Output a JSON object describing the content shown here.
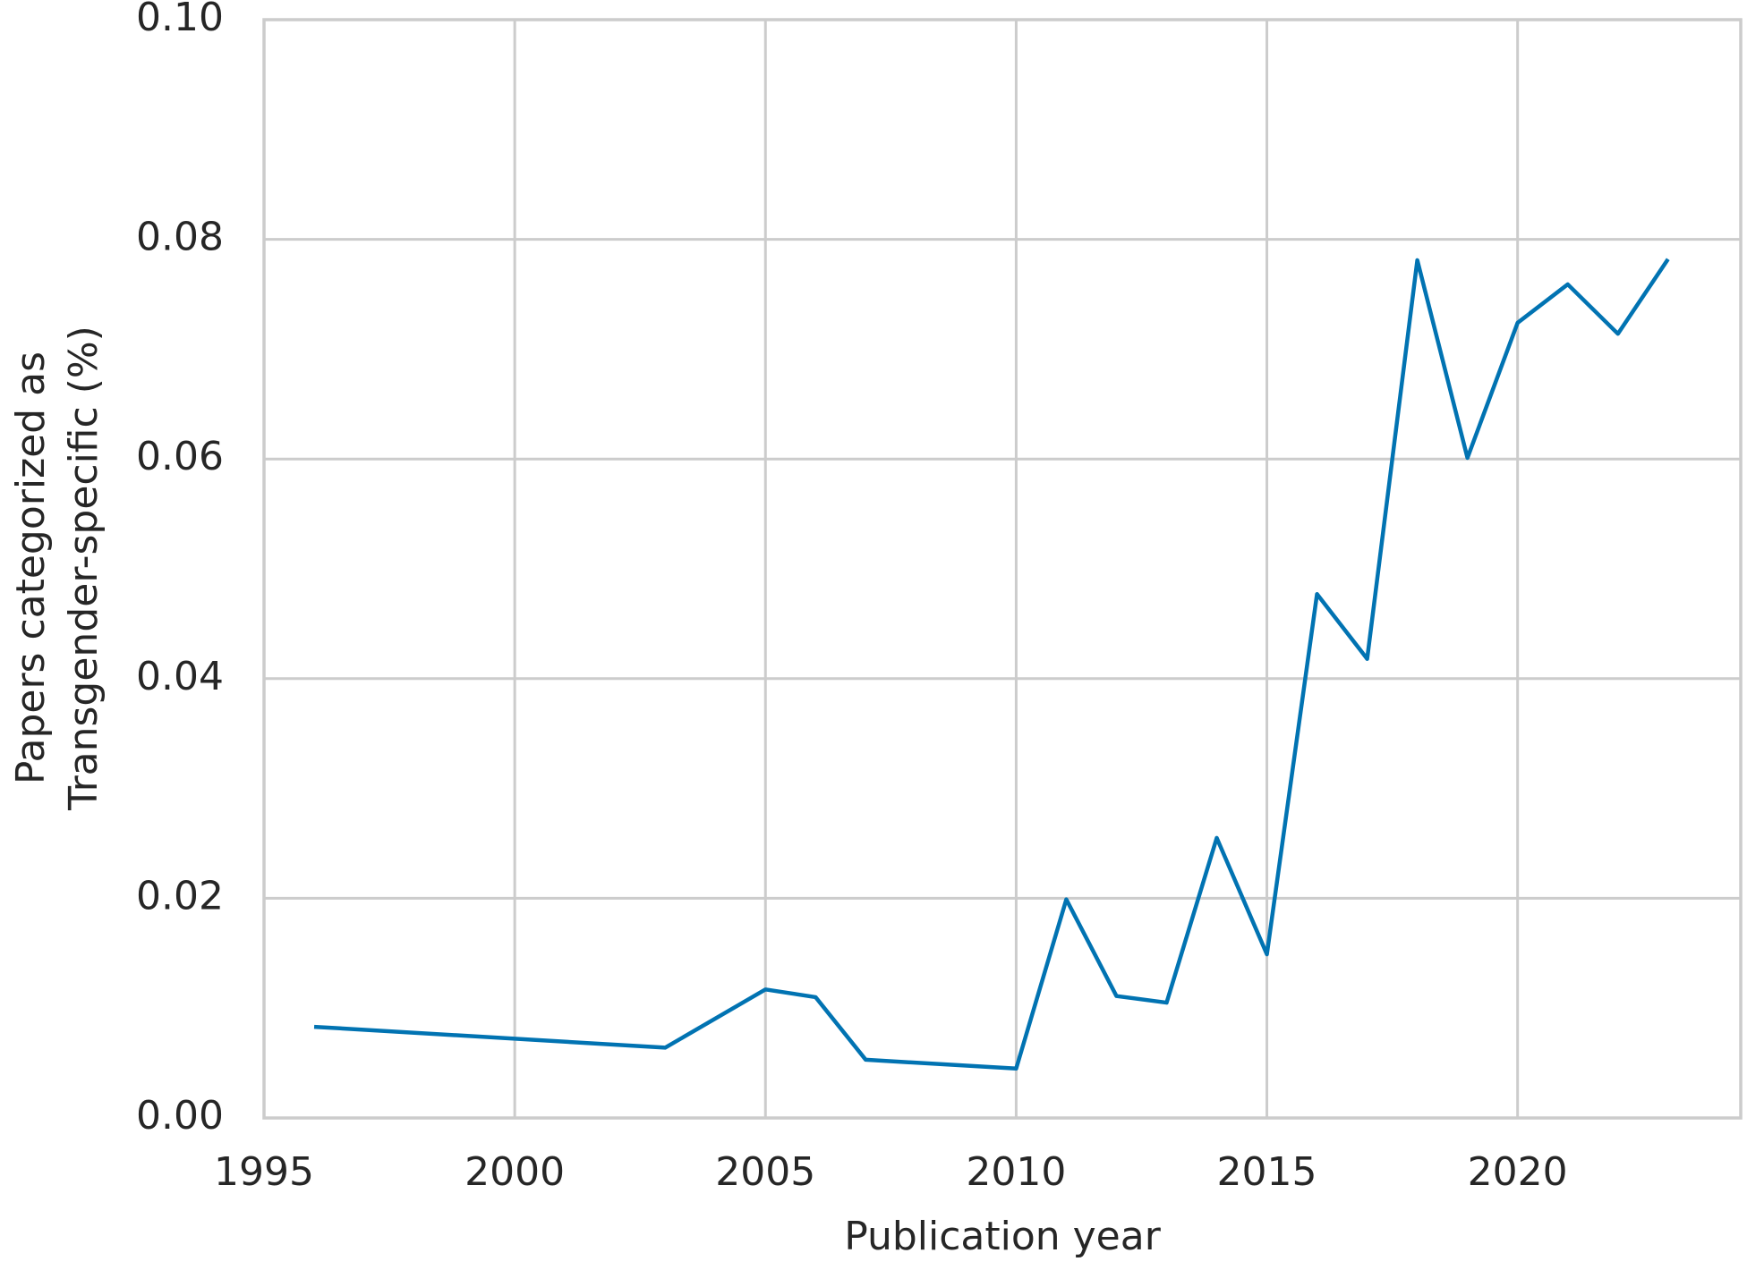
{
  "chart_data": {
    "type": "line",
    "xlabel": "Publication year",
    "ylabel": [
      "Papers categorized as",
      "Transgender-specific (%)"
    ],
    "x": [
      1996,
      2003,
      2005,
      2006,
      2007,
      2010,
      2011,
      2012,
      2013,
      2014,
      2015,
      2016,
      2017,
      2018,
      2019,
      2020,
      2021,
      2022,
      2023
    ],
    "series": [
      {
        "color": "#0173b2",
        "values": [
          0.0083,
          0.0064,
          0.0117,
          0.011,
          0.0053,
          0.0045,
          0.0199,
          0.0111,
          0.0105,
          0.0255,
          0.0149,
          0.0477,
          0.0418,
          0.0781,
          0.0601,
          0.0724,
          0.0759,
          0.0714,
          0.0782
        ]
      }
    ],
    "xlim": [
      1995,
      2024.45
    ],
    "ylim": [
      0,
      0.1
    ],
    "xticks": [
      1995,
      2000,
      2005,
      2010,
      2015,
      2020
    ],
    "yticks": [
      {
        "value": 0,
        "label": "0.00"
      },
      0.02,
      0.04,
      0.06,
      0.08,
      {
        "value": 0.1,
        "label": "0.10"
      }
    ],
    "grid": true
  }
}
